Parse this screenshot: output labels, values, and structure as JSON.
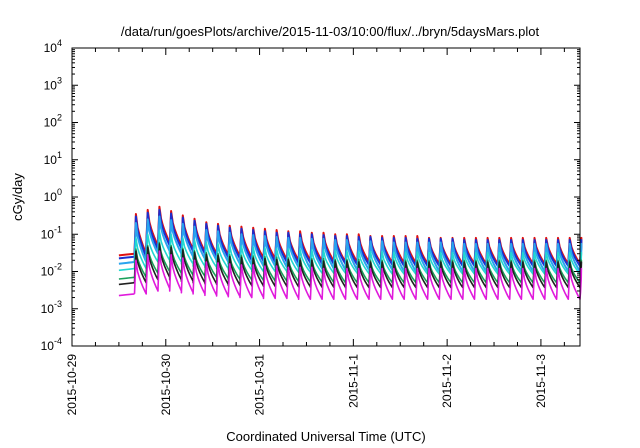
{
  "chart_data": {
    "type": "line",
    "title": "/data/run/goesPlots/archive/2015-11-03/10:00/flux/../bryn/5daysMars.plot",
    "xlabel": "Coordinated Universal Time (UTC)",
    "ylabel": "cGy/day",
    "yscale": "log",
    "ylim": [
      0.0001,
      10000
    ],
    "y_ticks": [
      {
        "base": "10",
        "exp": "-4"
      },
      {
        "base": "10",
        "exp": "-3"
      },
      {
        "base": "10",
        "exp": "-2"
      },
      {
        "base": "10",
        "exp": "-1"
      },
      {
        "base": "10",
        "exp": "0"
      },
      {
        "base": "10",
        "exp": "1"
      },
      {
        "base": "10",
        "exp": "2"
      },
      {
        "base": "10",
        "exp": "3"
      },
      {
        "base": "10",
        "exp": "4"
      }
    ],
    "xlim": [
      "2015-10-29 00:00",
      "2015-11-03 10:00"
    ],
    "x_ticks": [
      "2015-10-29",
      "2015-10-30",
      "2015-10-31",
      "2015-11-1",
      "2015-11-2",
      "2015-11-3"
    ],
    "grid": false,
    "legend": "none",
    "cycle_hours": 3,
    "series": [
      {
        "color": "#e01010",
        "peaks": [
          0.35,
          0.45,
          0.55,
          0.42,
          0.32,
          0.26,
          0.21,
          0.19,
          0.17,
          0.16,
          0.15,
          0.14,
          0.13,
          0.12,
          0.12,
          0.11,
          0.11,
          0.1,
          0.1,
          0.1,
          0.09,
          0.09,
          0.09,
          0.09,
          0.09,
          0.08,
          0.08,
          0.08,
          0.08,
          0.08,
          0.08,
          0.08,
          0.08,
          0.08,
          0.08,
          0.08,
          0.08,
          0.08,
          0.08,
          0.08,
          0.08,
          0.08,
          0.08
        ],
        "troughs": [
          0.03,
          0.05,
          0.06,
          0.05,
          0.04,
          0.035,
          0.03,
          0.028,
          0.026,
          0.024,
          0.023,
          0.022,
          0.021,
          0.02,
          0.02,
          0.019,
          0.019,
          0.018,
          0.018,
          0.018,
          0.017,
          0.017,
          0.017,
          0.017,
          0.016,
          0.016,
          0.016,
          0.016,
          0.016,
          0.016,
          0.016,
          0.016,
          0.016,
          0.016,
          0.016,
          0.016,
          0.016,
          0.016,
          0.016,
          0.016,
          0.016,
          0.016,
          0.016
        ]
      },
      {
        "color": "#1a2fd0",
        "peaks": [
          0.3,
          0.38,
          0.45,
          0.36,
          0.28,
          0.23,
          0.19,
          0.17,
          0.15,
          0.14,
          0.13,
          0.12,
          0.11,
          0.11,
          0.1,
          0.1,
          0.095,
          0.09,
          0.09,
          0.085,
          0.085,
          0.08,
          0.08,
          0.08,
          0.075,
          0.075,
          0.075,
          0.075,
          0.07,
          0.07,
          0.07,
          0.07,
          0.07,
          0.07,
          0.07,
          0.07,
          0.07,
          0.07,
          0.07,
          0.07,
          0.07,
          0.07,
          0.07
        ],
        "troughs": [
          0.025,
          0.04,
          0.05,
          0.042,
          0.035,
          0.03,
          0.026,
          0.024,
          0.022,
          0.02,
          0.019,
          0.018,
          0.018,
          0.017,
          0.017,
          0.016,
          0.016,
          0.016,
          0.015,
          0.015,
          0.015,
          0.015,
          0.014,
          0.014,
          0.014,
          0.014,
          0.014,
          0.014,
          0.014,
          0.014,
          0.014,
          0.014,
          0.014,
          0.014,
          0.014,
          0.014,
          0.014,
          0.014,
          0.014,
          0.014,
          0.014,
          0.014,
          0.014
        ]
      },
      {
        "color": "#2aa4ee",
        "peaks": [
          0.2,
          0.25,
          0.3,
          0.24,
          0.19,
          0.16,
          0.13,
          0.12,
          0.11,
          0.1,
          0.095,
          0.09,
          0.085,
          0.08,
          0.08,
          0.075,
          0.075,
          0.07,
          0.07,
          0.065,
          0.065,
          0.065,
          0.06,
          0.06,
          0.06,
          0.06,
          0.06,
          0.06,
          0.055,
          0.055,
          0.055,
          0.055,
          0.055,
          0.055,
          0.055,
          0.055,
          0.055,
          0.055,
          0.055,
          0.055,
          0.055,
          0.055,
          0.055
        ],
        "troughs": [
          0.018,
          0.03,
          0.035,
          0.03,
          0.025,
          0.022,
          0.02,
          0.018,
          0.016,
          0.015,
          0.014,
          0.014,
          0.013,
          0.013,
          0.012,
          0.012,
          0.012,
          0.011,
          0.011,
          0.011,
          0.011,
          0.011,
          0.01,
          0.01,
          0.01,
          0.01,
          0.01,
          0.01,
          0.01,
          0.01,
          0.01,
          0.01,
          0.01,
          0.01,
          0.01,
          0.01,
          0.01,
          0.01,
          0.01,
          0.01,
          0.01,
          0.01,
          0.01
        ]
      },
      {
        "color": "#22d8d0",
        "peaks": [
          0.08,
          0.1,
          0.12,
          0.1,
          0.08,
          0.07,
          0.06,
          0.055,
          0.05,
          0.048,
          0.045,
          0.043,
          0.041,
          0.04,
          0.039,
          0.038,
          0.037,
          0.036,
          0.035,
          0.035,
          0.034,
          0.034,
          0.033,
          0.033,
          0.033,
          0.032,
          0.032,
          0.032,
          0.032,
          0.032,
          0.032,
          0.032,
          0.032,
          0.032,
          0.032,
          0.032,
          0.032,
          0.032,
          0.032,
          0.032,
          0.032,
          0.032,
          0.032
        ],
        "troughs": [
          0.012,
          0.018,
          0.02,
          0.018,
          0.016,
          0.014,
          0.013,
          0.012,
          0.011,
          0.011,
          0.01,
          0.01,
          0.01,
          0.0095,
          0.0095,
          0.009,
          0.009,
          0.009,
          0.009,
          0.0088,
          0.0088,
          0.0085,
          0.0085,
          0.0085,
          0.0085,
          0.0085,
          0.0085,
          0.0085,
          0.0085,
          0.0085,
          0.0085,
          0.0085,
          0.0085,
          0.0085,
          0.0085,
          0.0085,
          0.0085,
          0.0085,
          0.0085,
          0.0085,
          0.0085,
          0.0085,
          0.0085
        ]
      },
      {
        "color": "#1aa05a",
        "peaks": [
          0.04,
          0.05,
          0.06,
          0.05,
          0.042,
          0.036,
          0.032,
          0.03,
          0.028,
          0.027,
          0.026,
          0.025,
          0.024,
          0.023,
          0.023,
          0.022,
          0.022,
          0.021,
          0.021,
          0.021,
          0.02,
          0.02,
          0.02,
          0.02,
          0.02,
          0.02,
          0.02,
          0.02,
          0.02,
          0.02,
          0.02,
          0.02,
          0.02,
          0.02,
          0.02,
          0.02,
          0.02,
          0.02,
          0.02,
          0.02,
          0.02,
          0.02,
          0.02
        ],
        "troughs": [
          0.007,
          0.009,
          0.01,
          0.009,
          0.008,
          0.0075,
          0.007,
          0.0065,
          0.0062,
          0.006,
          0.0058,
          0.0056,
          0.0055,
          0.0054,
          0.0053,
          0.0052,
          0.0051,
          0.005,
          0.005,
          0.005,
          0.005,
          0.005,
          0.005,
          0.005,
          0.005,
          0.005,
          0.005,
          0.005,
          0.005,
          0.005,
          0.005,
          0.005,
          0.005,
          0.005,
          0.005,
          0.005,
          0.005,
          0.005,
          0.005,
          0.005,
          0.005,
          0.005,
          0.005
        ]
      },
      {
        "color": "#202020",
        "peaks": [
          0.035,
          0.045,
          0.055,
          0.045,
          0.038,
          0.033,
          0.029,
          0.027,
          0.025,
          0.024,
          0.023,
          0.022,
          0.021,
          0.021,
          0.02,
          0.02,
          0.019,
          0.019,
          0.019,
          0.018,
          0.018,
          0.018,
          0.018,
          0.018,
          0.018,
          0.018,
          0.018,
          0.018,
          0.018,
          0.018,
          0.018,
          0.018,
          0.018,
          0.018,
          0.018,
          0.018,
          0.018,
          0.018,
          0.018,
          0.018,
          0.018,
          0.018,
          0.018
        ],
        "troughs": [
          0.005,
          0.006,
          0.007,
          0.006,
          0.0055,
          0.005,
          0.0047,
          0.0045,
          0.0043,
          0.0042,
          0.0041,
          0.004,
          0.004,
          0.0039,
          0.0039,
          0.0038,
          0.0038,
          0.0038,
          0.0037,
          0.0037,
          0.0037,
          0.0037,
          0.0037,
          0.0037,
          0.0037,
          0.0037,
          0.0037,
          0.0037,
          0.0037,
          0.0037,
          0.0037,
          0.0037,
          0.0037,
          0.0037,
          0.0037,
          0.0037,
          0.0037,
          0.0037,
          0.0037,
          0.0037,
          0.0037,
          0.0037,
          0.0037
        ]
      },
      {
        "color": "#e01adc",
        "peaks": [
          0.02,
          0.028,
          0.035,
          0.028,
          0.023,
          0.02,
          0.018,
          0.017,
          0.016,
          0.015,
          0.015,
          0.014,
          0.014,
          0.013,
          0.013,
          0.013,
          0.012,
          0.012,
          0.012,
          0.012,
          0.012,
          0.012,
          0.012,
          0.012,
          0.012,
          0.012,
          0.012,
          0.012,
          0.012,
          0.012,
          0.012,
          0.012,
          0.012,
          0.012,
          0.012,
          0.012,
          0.012,
          0.012,
          0.012,
          0.012,
          0.012,
          0.012,
          0.012
        ],
        "troughs": [
          0.0025,
          0.003,
          0.0035,
          0.003,
          0.0027,
          0.0025,
          0.0023,
          0.0022,
          0.0021,
          0.002,
          0.002,
          0.0019,
          0.0019,
          0.0019,
          0.0018,
          0.0018,
          0.0018,
          0.0018,
          0.0018,
          0.0018,
          0.0018,
          0.0018,
          0.0018,
          0.0018,
          0.0018,
          0.0018,
          0.0018,
          0.0018,
          0.0018,
          0.0018,
          0.0018,
          0.0018,
          0.0018,
          0.0018,
          0.0018,
          0.0018,
          0.0018,
          0.0018,
          0.0018,
          0.0018,
          0.0018,
          0.0018,
          0.0018
        ]
      }
    ]
  }
}
